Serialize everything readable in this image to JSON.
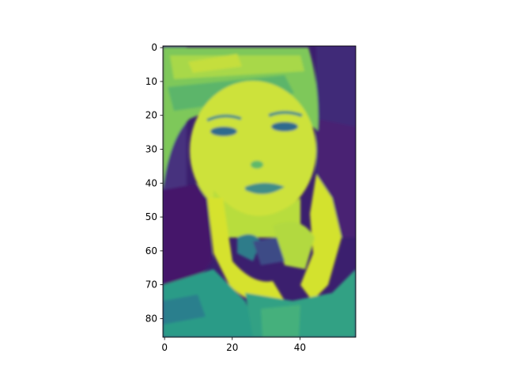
{
  "chart_data": {
    "type": "heatmap",
    "title": "",
    "xlabel": "",
    "ylabel": "",
    "colormap": "viridis",
    "image_size": {
      "columns": 57,
      "rows": 86
    },
    "xlim": [
      -0.5,
      56.5
    ],
    "ylim": [
      85.5,
      -0.5
    ],
    "y_inverted": true,
    "grid": false,
    "x_ticks": [
      {
        "value": 0,
        "label": "0"
      },
      {
        "value": 20,
        "label": "20"
      },
      {
        "value": 40,
        "label": "40"
      }
    ],
    "y_ticks": [
      {
        "value": 0,
        "label": "0"
      },
      {
        "value": 10,
        "label": "10"
      },
      {
        "value": 20,
        "label": "20"
      },
      {
        "value": 30,
        "label": "30"
      },
      {
        "value": 40,
        "label": "40"
      },
      {
        "value": 50,
        "label": "50"
      },
      {
        "value": 60,
        "label": "60"
      },
      {
        "value": 70,
        "label": "70"
      },
      {
        "value": 80,
        "label": "80"
      }
    ],
    "colors": {
      "low": "#440154",
      "low_mid": "#3b528b",
      "mid": "#21918c",
      "high_mid": "#5ec962",
      "high": "#fde725",
      "axis": "#000000"
    }
  }
}
